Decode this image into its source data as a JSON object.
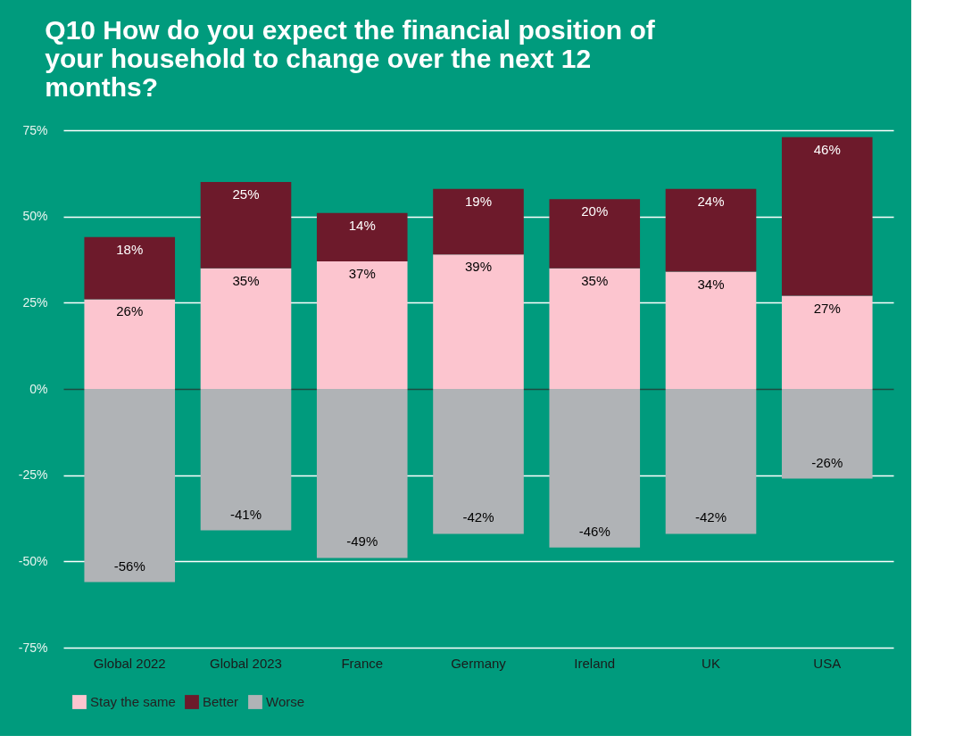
{
  "chart_data": {
    "type": "bar",
    "stacked": true,
    "title": "Q10 How do you expect the financial position of your household to change over the next 12 months?",
    "categories": [
      "Global 2022",
      "Global 2023",
      "France",
      "Germany",
      "Ireland",
      "UK",
      "USA"
    ],
    "series": [
      {
        "name": "Stay the same",
        "color": "#fcc5cf",
        "values": [
          26,
          35,
          37,
          39,
          35,
          34,
          27
        ],
        "value_labels": [
          "26%",
          "35%",
          "37%",
          "39%",
          "35%",
          "34%",
          "27%"
        ]
      },
      {
        "name": "Better",
        "color": "#6d1a2b",
        "values": [
          18,
          25,
          14,
          19,
          20,
          24,
          46
        ],
        "value_labels": [
          "18%",
          "25%",
          "14%",
          "19%",
          "20%",
          "24%",
          "46%"
        ]
      },
      {
        "name": "Worse",
        "color": "#b0b3b6",
        "values": [
          -56,
          -41,
          -49,
          -42,
          -46,
          -42,
          -26
        ],
        "value_labels": [
          "-56%",
          "-41%",
          "-49%",
          "-42%",
          "-46%",
          "-42%",
          "-26%"
        ]
      }
    ],
    "ylim": [
      -75,
      75
    ],
    "yticks": [
      {
        "value": -75,
        "label": "-75%"
      },
      {
        "value": -50,
        "label": "-50%"
      },
      {
        "value": -25,
        "label": "-25%"
      },
      {
        "value": 0,
        "label": "0%"
      },
      {
        "value": 25,
        "label": "25%"
      },
      {
        "value": 50,
        "label": "50%"
      },
      {
        "value": 75,
        "label": "75%"
      }
    ],
    "grid": "y",
    "legend": "bottom"
  }
}
